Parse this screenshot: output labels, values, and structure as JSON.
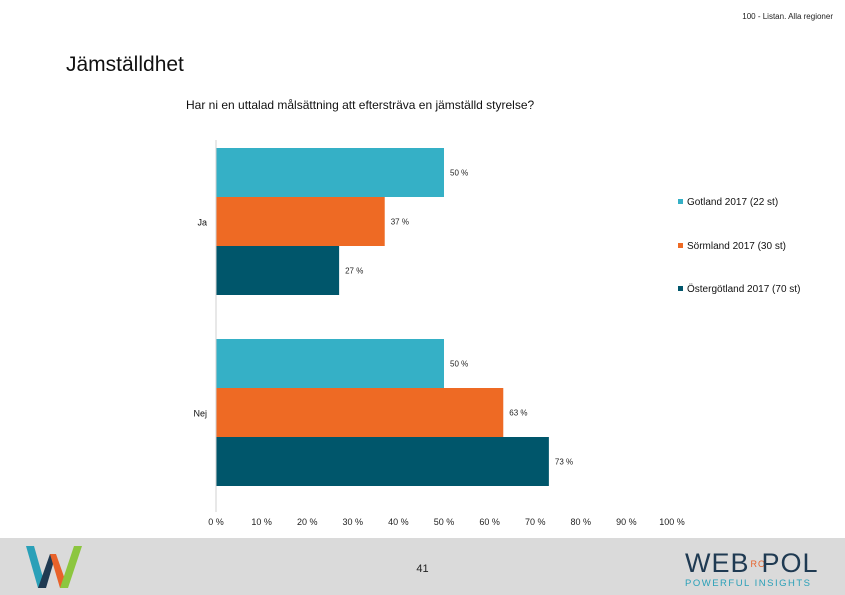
{
  "header": {
    "subtitle": "100 - Listan. Alla regioner"
  },
  "page": {
    "title": "Jämställdhet",
    "number": "41"
  },
  "brand": {
    "main_left": "WEB",
    "main_ro": "RO",
    "main_right": "POL",
    "tagline": "POWERFUL INSIGHTS"
  },
  "colors": {
    "gotland": "#35b0c6",
    "sormland": "#ee6a24",
    "ostergotland": "#00566b"
  },
  "icons": {
    "left_logo": "w-logo-icon"
  },
  "chart_data": {
    "type": "bar",
    "orientation": "horizontal",
    "title": "Har ni en uttalad målsättning att eftersträva en jämställd styrelse?",
    "categories": [
      "Ja",
      "Nej"
    ],
    "series": [
      {
        "name": "Gotland 2017 (22 st)",
        "values": [
          50,
          50
        ],
        "labels": [
          "50 %",
          "50 %"
        ],
        "color": "#35b0c6"
      },
      {
        "name": "Sörmland 2017 (30 st)",
        "values": [
          37,
          63
        ],
        "labels": [
          "37 %",
          "63 %"
        ],
        "color": "#ee6a24"
      },
      {
        "name": "Östergötland 2017 (70 st)",
        "values": [
          27,
          73
        ],
        "labels": [
          "27 %",
          "73 %"
        ],
        "color": "#00566b"
      }
    ],
    "xlim": [
      0,
      100
    ],
    "xticks": [
      "0 %",
      "10 %",
      "20 %",
      "30 %",
      "40 %",
      "50 %",
      "60 %",
      "70 %",
      "80 %",
      "90 %",
      "100 %"
    ],
    "grid": false,
    "legend": "right"
  }
}
